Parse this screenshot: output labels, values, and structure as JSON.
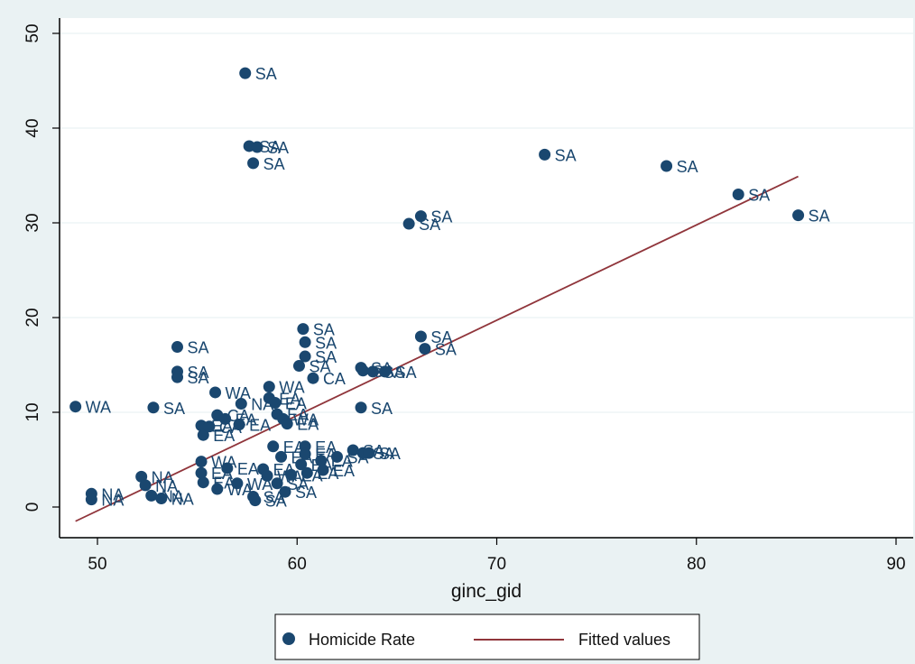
{
  "chart_data": {
    "type": "scatter",
    "xlabel": "ginc_gid",
    "ylabel": "",
    "xlim": [
      49,
      90
    ],
    "ylim": [
      -3,
      52
    ],
    "x_ticks": [
      50,
      60,
      70,
      80,
      90
    ],
    "y_ticks": [
      0,
      10,
      20,
      30,
      40,
      50
    ],
    "grid": "horizontal",
    "legend_position": "bottom",
    "colors": {
      "marker": "#1a476f",
      "fit": "#90353b",
      "plot_bg": "#ffffff",
      "outer_bg": "#eaf2f3"
    },
    "series": [
      {
        "name": "Homicide Rate",
        "kind": "scatter",
        "points": [
          {
            "x": 48.9,
            "y": 10.6,
            "label": "WA"
          },
          {
            "x": 49.7,
            "y": 1.4,
            "label": "NA"
          },
          {
            "x": 49.7,
            "y": 0.8,
            "label": "NA"
          },
          {
            "x": 52.2,
            "y": 3.2,
            "label": "NA"
          },
          {
            "x": 52.4,
            "y": 2.3,
            "label": "NA"
          },
          {
            "x": 52.7,
            "y": 1.2,
            "label": "NA"
          },
          {
            "x": 53.2,
            "y": 0.9,
            "label": "NA"
          },
          {
            "x": 52.8,
            "y": 10.5,
            "label": "SA"
          },
          {
            "x": 54.0,
            "y": 16.9,
            "label": "SA"
          },
          {
            "x": 54.0,
            "y": 14.3,
            "label": "SA"
          },
          {
            "x": 54.0,
            "y": 13.7,
            "label": "SA"
          },
          {
            "x": 55.2,
            "y": 8.6,
            "label": "EA"
          },
          {
            "x": 55.3,
            "y": 7.6,
            "label": "EA"
          },
          {
            "x": 55.6,
            "y": 8.5,
            "label": "CA"
          },
          {
            "x": 55.9,
            "y": 12.1,
            "label": "WA"
          },
          {
            "x": 56.0,
            "y": 9.7,
            "label": "CA"
          },
          {
            "x": 56.4,
            "y": 9.3,
            "label": "EA"
          },
          {
            "x": 55.2,
            "y": 4.8,
            "label": "WA"
          },
          {
            "x": 55.2,
            "y": 3.6,
            "label": "EA"
          },
          {
            "x": 55.3,
            "y": 2.6,
            "label": "EA"
          },
          {
            "x": 56.0,
            "y": 1.9,
            "label": "WA"
          },
          {
            "x": 56.5,
            "y": 4.1,
            "label": "EA"
          },
          {
            "x": 57.0,
            "y": 2.5,
            "label": "WA"
          },
          {
            "x": 57.2,
            "y": 10.9,
            "label": "NA"
          },
          {
            "x": 57.1,
            "y": 8.7,
            "label": "EA"
          },
          {
            "x": 57.4,
            "y": 45.8,
            "label": "SA"
          },
          {
            "x": 57.6,
            "y": 38.1,
            "label": "SA"
          },
          {
            "x": 58.0,
            "y": 38.0,
            "label": "SA"
          },
          {
            "x": 57.8,
            "y": 36.3,
            "label": "SA"
          },
          {
            "x": 57.8,
            "y": 1.1,
            "label": "SA"
          },
          {
            "x": 57.9,
            "y": 0.7,
            "label": "SA"
          },
          {
            "x": 58.3,
            "y": 4.0,
            "label": "EA"
          },
          {
            "x": 58.5,
            "y": 3.3,
            "label": "WA"
          },
          {
            "x": 58.6,
            "y": 12.7,
            "label": "WA"
          },
          {
            "x": 58.6,
            "y": 11.5,
            "label": "EA"
          },
          {
            "x": 58.9,
            "y": 11.0,
            "label": "EA"
          },
          {
            "x": 59.0,
            "y": 9.8,
            "label": "EA"
          },
          {
            "x": 59.3,
            "y": 9.3,
            "label": "WA"
          },
          {
            "x": 59.5,
            "y": 8.8,
            "label": "EA"
          },
          {
            "x": 58.8,
            "y": 6.4,
            "label": "EA"
          },
          {
            "x": 59.2,
            "y": 5.3,
            "label": "EA"
          },
          {
            "x": 59.0,
            "y": 2.5,
            "label": "SA"
          },
          {
            "x": 59.4,
            "y": 1.6,
            "label": "SA"
          },
          {
            "x": 59.7,
            "y": 3.4,
            "label": "EA"
          },
          {
            "x": 60.3,
            "y": 18.8,
            "label": "SA"
          },
          {
            "x": 60.4,
            "y": 17.4,
            "label": "SA"
          },
          {
            "x": 60.4,
            "y": 15.9,
            "label": "SA"
          },
          {
            "x": 60.1,
            "y": 14.9,
            "label": "SA"
          },
          {
            "x": 60.8,
            "y": 13.6,
            "label": "CA"
          },
          {
            "x": 60.4,
            "y": 6.4,
            "label": "EA"
          },
          {
            "x": 60.4,
            "y": 5.6,
            "label": "EA"
          },
          {
            "x": 60.2,
            "y": 4.5,
            "label": "EA"
          },
          {
            "x": 60.5,
            "y": 3.6,
            "label": "EA"
          },
          {
            "x": 61.2,
            "y": 4.9,
            "label": "EA"
          },
          {
            "x": 61.3,
            "y": 3.9,
            "label": "EA"
          },
          {
            "x": 62.0,
            "y": 5.3,
            "label": "SA"
          },
          {
            "x": 62.8,
            "y": 6.0,
            "label": "SA"
          },
          {
            "x": 63.3,
            "y": 5.7,
            "label": "SA"
          },
          {
            "x": 63.6,
            "y": 5.7,
            "label": "SA"
          },
          {
            "x": 63.2,
            "y": 14.7,
            "label": "SA"
          },
          {
            "x": 63.3,
            "y": 14.4,
            "label": "SA"
          },
          {
            "x": 63.8,
            "y": 14.3,
            "label": "SA"
          },
          {
            "x": 64.4,
            "y": 14.3,
            "label": "SA"
          },
          {
            "x": 63.2,
            "y": 10.5,
            "label": "SA"
          },
          {
            "x": 65.6,
            "y": 29.9,
            "label": "SA"
          },
          {
            "x": 66.2,
            "y": 30.7,
            "label": "SA"
          },
          {
            "x": 66.2,
            "y": 18.0,
            "label": "SA"
          },
          {
            "x": 66.4,
            "y": 16.7,
            "label": "SA"
          },
          {
            "x": 72.4,
            "y": 37.2,
            "label": "SA"
          },
          {
            "x": 78.5,
            "y": 36.0,
            "label": "SA"
          },
          {
            "x": 82.1,
            "y": 33.0,
            "label": "SA"
          },
          {
            "x": 85.1,
            "y": 30.8,
            "label": "SA"
          }
        ]
      },
      {
        "name": "Fitted values",
        "kind": "line",
        "points": [
          {
            "x": 48.9,
            "y": -1.5
          },
          {
            "x": 85.1,
            "y": 34.9
          }
        ]
      }
    ]
  }
}
